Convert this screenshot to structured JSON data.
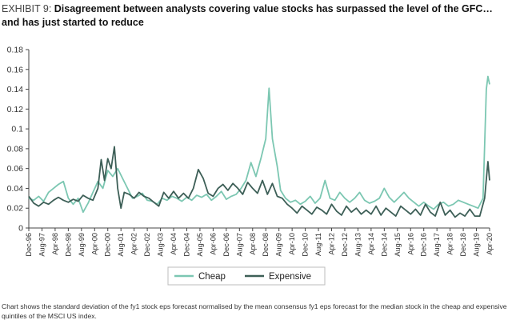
{
  "header": {
    "exhibit_label": "EXHIBIT 9:",
    "title": "Disagreement between analysts covering value stocks has surpassed the level of the GFC… and has just started to reduce"
  },
  "footnote": "Chart shows the standard deviation of the fy1 stock eps forecast normalised by the mean consensus fy1 eps forecast for the median stock in the cheap and expensive quintiles of the MSCI US index.",
  "colors": {
    "cheap": "#7cc7b2",
    "expensive": "#3d5f57",
    "axis": "#444444"
  },
  "chart_data": {
    "type": "line",
    "title": "",
    "xlabel": "",
    "ylabel": "",
    "ylim": [
      0,
      0.18
    ],
    "yticks": [
      0,
      0.02,
      0.04,
      0.06,
      0.08,
      0.1,
      0.12,
      0.14,
      0.16,
      0.18
    ],
    "ytick_labels": [
      "0",
      "0.02",
      "0.04",
      "0.06",
      "0.08",
      "0.1",
      "0.12",
      "0.14",
      "0.16",
      "0.18"
    ],
    "xlim": [
      "1996-12",
      "2020-04"
    ],
    "xtick_labels": [
      "Dec-96",
      "Aug-97",
      "Apr-98",
      "Dec-98",
      "Aug-99",
      "Apr-00",
      "Dec-00",
      "Aug-01",
      "Apr-02",
      "Dec-02",
      "Aug-03",
      "Apr-04",
      "Dec-04",
      "Aug-05",
      "Apr-06",
      "Dec-06",
      "Aug-07",
      "Apr-08",
      "Dec-08",
      "Aug-09",
      "Apr-10",
      "Dec-10",
      "Aug-11",
      "Apr-12",
      "Dec-12",
      "Aug-13",
      "Apr-14",
      "Dec-14",
      "Aug-15",
      "Apr-16",
      "Dec-16",
      "Aug-17",
      "Apr-18",
      "Dec-18",
      "Aug-19",
      "Apr-20"
    ],
    "grid": false,
    "legend": "bottom",
    "series": [
      {
        "name": "Cheap",
        "points": [
          [
            "1996-12",
            0.03
          ],
          [
            "1997-03",
            0.028
          ],
          [
            "1997-06",
            0.032
          ],
          [
            "1997-09",
            0.027
          ],
          [
            "1997-12",
            0.036
          ],
          [
            "1998-03",
            0.04
          ],
          [
            "1998-06",
            0.044
          ],
          [
            "1998-09",
            0.047
          ],
          [
            "1998-12",
            0.03
          ],
          [
            "1999-03",
            0.024
          ],
          [
            "1999-06",
            0.03
          ],
          [
            "1999-09",
            0.016
          ],
          [
            "1999-12",
            0.025
          ],
          [
            "2000-03",
            0.036
          ],
          [
            "2000-06",
            0.047
          ],
          [
            "2000-09",
            0.04
          ],
          [
            "2000-12",
            0.058
          ],
          [
            "2001-03",
            0.052
          ],
          [
            "2001-06",
            0.06
          ],
          [
            "2001-09",
            0.05
          ],
          [
            "2001-12",
            0.04
          ],
          [
            "2002-03",
            0.03
          ],
          [
            "2002-06",
            0.032
          ],
          [
            "2002-09",
            0.035
          ],
          [
            "2002-12",
            0.028
          ],
          [
            "2003-03",
            0.027
          ],
          [
            "2003-06",
            0.024
          ],
          [
            "2003-09",
            0.03
          ],
          [
            "2003-12",
            0.028
          ],
          [
            "2004-03",
            0.032
          ],
          [
            "2004-06",
            0.03
          ],
          [
            "2004-09",
            0.027
          ],
          [
            "2004-12",
            0.031
          ],
          [
            "2005-03",
            0.028
          ],
          [
            "2005-06",
            0.033
          ],
          [
            "2005-09",
            0.031
          ],
          [
            "2005-12",
            0.034
          ],
          [
            "2006-03",
            0.028
          ],
          [
            "2006-06",
            0.032
          ],
          [
            "2006-09",
            0.037
          ],
          [
            "2006-12",
            0.029
          ],
          [
            "2007-03",
            0.032
          ],
          [
            "2007-06",
            0.034
          ],
          [
            "2007-09",
            0.04
          ],
          [
            "2007-12",
            0.048
          ],
          [
            "2008-03",
            0.066
          ],
          [
            "2008-06",
            0.052
          ],
          [
            "2008-09",
            0.07
          ],
          [
            "2008-12",
            0.09
          ],
          [
            "2009-02",
            0.141
          ],
          [
            "2009-04",
            0.09
          ],
          [
            "2009-07",
            0.062
          ],
          [
            "2009-09",
            0.038
          ],
          [
            "2009-12",
            0.03
          ],
          [
            "2010-03",
            0.026
          ],
          [
            "2010-06",
            0.028
          ],
          [
            "2010-09",
            0.024
          ],
          [
            "2010-12",
            0.027
          ],
          [
            "2011-03",
            0.032
          ],
          [
            "2011-06",
            0.025
          ],
          [
            "2011-09",
            0.03
          ],
          [
            "2011-12",
            0.048
          ],
          [
            "2012-03",
            0.03
          ],
          [
            "2012-06",
            0.028
          ],
          [
            "2012-09",
            0.036
          ],
          [
            "2012-12",
            0.03
          ],
          [
            "2013-03",
            0.026
          ],
          [
            "2013-06",
            0.03
          ],
          [
            "2013-09",
            0.036
          ],
          [
            "2013-12",
            0.028
          ],
          [
            "2014-03",
            0.025
          ],
          [
            "2014-06",
            0.027
          ],
          [
            "2014-09",
            0.03
          ],
          [
            "2014-12",
            0.04
          ],
          [
            "2015-03",
            0.031
          ],
          [
            "2015-06",
            0.026
          ],
          [
            "2015-09",
            0.031
          ],
          [
            "2015-12",
            0.036
          ],
          [
            "2016-03",
            0.03
          ],
          [
            "2016-06",
            0.026
          ],
          [
            "2016-09",
            0.022
          ],
          [
            "2016-12",
            0.026
          ],
          [
            "2017-03",
            0.022
          ],
          [
            "2017-06",
            0.019
          ],
          [
            "2017-09",
            0.024
          ],
          [
            "2017-12",
            0.026
          ],
          [
            "2018-03",
            0.022
          ],
          [
            "2018-06",
            0.024
          ],
          [
            "2018-09",
            0.028
          ],
          [
            "2018-12",
            0.026
          ],
          [
            "2019-03",
            0.024
          ],
          [
            "2019-06",
            0.022
          ],
          [
            "2019-09",
            0.02
          ],
          [
            "2019-12",
            0.03
          ],
          [
            "2020-02",
            0.14
          ],
          [
            "2020-03",
            0.153
          ],
          [
            "2020-04",
            0.145
          ]
        ]
      },
      {
        "name": "Expensive",
        "points": [
          [
            "1996-12",
            0.032
          ],
          [
            "1997-03",
            0.025
          ],
          [
            "1997-06",
            0.022
          ],
          [
            "1997-09",
            0.026
          ],
          [
            "1997-12",
            0.024
          ],
          [
            "1998-03",
            0.028
          ],
          [
            "1998-06",
            0.031
          ],
          [
            "1998-09",
            0.028
          ],
          [
            "1998-12",
            0.026
          ],
          [
            "1999-03",
            0.029
          ],
          [
            "1999-06",
            0.027
          ],
          [
            "1999-09",
            0.033
          ],
          [
            "1999-12",
            0.03
          ],
          [
            "2000-03",
            0.028
          ],
          [
            "2000-06",
            0.04
          ],
          [
            "2000-08",
            0.069
          ],
          [
            "2000-10",
            0.048
          ],
          [
            "2000-12",
            0.07
          ],
          [
            "2001-02",
            0.06
          ],
          [
            "2001-04",
            0.082
          ],
          [
            "2001-06",
            0.04
          ],
          [
            "2001-08",
            0.02
          ],
          [
            "2001-10",
            0.036
          ],
          [
            "2002-01",
            0.034
          ],
          [
            "2002-04",
            0.03
          ],
          [
            "2002-07",
            0.036
          ],
          [
            "2002-10",
            0.032
          ],
          [
            "2003-01",
            0.03
          ],
          [
            "2003-04",
            0.026
          ],
          [
            "2003-07",
            0.022
          ],
          [
            "2003-10",
            0.036
          ],
          [
            "2004-01",
            0.03
          ],
          [
            "2004-04",
            0.037
          ],
          [
            "2004-07",
            0.03
          ],
          [
            "2004-10",
            0.035
          ],
          [
            "2005-01",
            0.03
          ],
          [
            "2005-04",
            0.04
          ],
          [
            "2005-07",
            0.059
          ],
          [
            "2005-10",
            0.05
          ],
          [
            "2006-01",
            0.035
          ],
          [
            "2006-04",
            0.032
          ],
          [
            "2006-07",
            0.04
          ],
          [
            "2006-10",
            0.044
          ],
          [
            "2007-01",
            0.038
          ],
          [
            "2007-04",
            0.045
          ],
          [
            "2007-07",
            0.04
          ],
          [
            "2007-10",
            0.034
          ],
          [
            "2008-01",
            0.046
          ],
          [
            "2008-04",
            0.04
          ],
          [
            "2008-07",
            0.035
          ],
          [
            "2008-10",
            0.048
          ],
          [
            "2009-01",
            0.034
          ],
          [
            "2009-04",
            0.045
          ],
          [
            "2009-07",
            0.032
          ],
          [
            "2009-10",
            0.03
          ],
          [
            "2010-01",
            0.024
          ],
          [
            "2010-04",
            0.02
          ],
          [
            "2010-07",
            0.015
          ],
          [
            "2010-10",
            0.022
          ],
          [
            "2011-01",
            0.018
          ],
          [
            "2011-04",
            0.014
          ],
          [
            "2011-07",
            0.021
          ],
          [
            "2011-10",
            0.018
          ],
          [
            "2012-01",
            0.014
          ],
          [
            "2012-04",
            0.024
          ],
          [
            "2012-07",
            0.017
          ],
          [
            "2012-10",
            0.013
          ],
          [
            "2013-01",
            0.022
          ],
          [
            "2013-04",
            0.016
          ],
          [
            "2013-07",
            0.02
          ],
          [
            "2013-10",
            0.014
          ],
          [
            "2014-01",
            0.018
          ],
          [
            "2014-04",
            0.014
          ],
          [
            "2014-07",
            0.022
          ],
          [
            "2014-10",
            0.013
          ],
          [
            "2015-01",
            0.02
          ],
          [
            "2015-04",
            0.016
          ],
          [
            "2015-07",
            0.012
          ],
          [
            "2015-10",
            0.022
          ],
          [
            "2016-01",
            0.018
          ],
          [
            "2016-04",
            0.014
          ],
          [
            "2016-07",
            0.019
          ],
          [
            "2016-10",
            0.013
          ],
          [
            "2017-01",
            0.024
          ],
          [
            "2017-04",
            0.016
          ],
          [
            "2017-07",
            0.012
          ],
          [
            "2017-10",
            0.026
          ],
          [
            "2018-01",
            0.013
          ],
          [
            "2018-04",
            0.018
          ],
          [
            "2018-07",
            0.011
          ],
          [
            "2018-10",
            0.015
          ],
          [
            "2019-01",
            0.012
          ],
          [
            "2019-04",
            0.019
          ],
          [
            "2019-07",
            0.012
          ],
          [
            "2019-10",
            0.012
          ],
          [
            "2020-01",
            0.03
          ],
          [
            "2020-03",
            0.067
          ],
          [
            "2020-04",
            0.048
          ]
        ]
      }
    ]
  }
}
